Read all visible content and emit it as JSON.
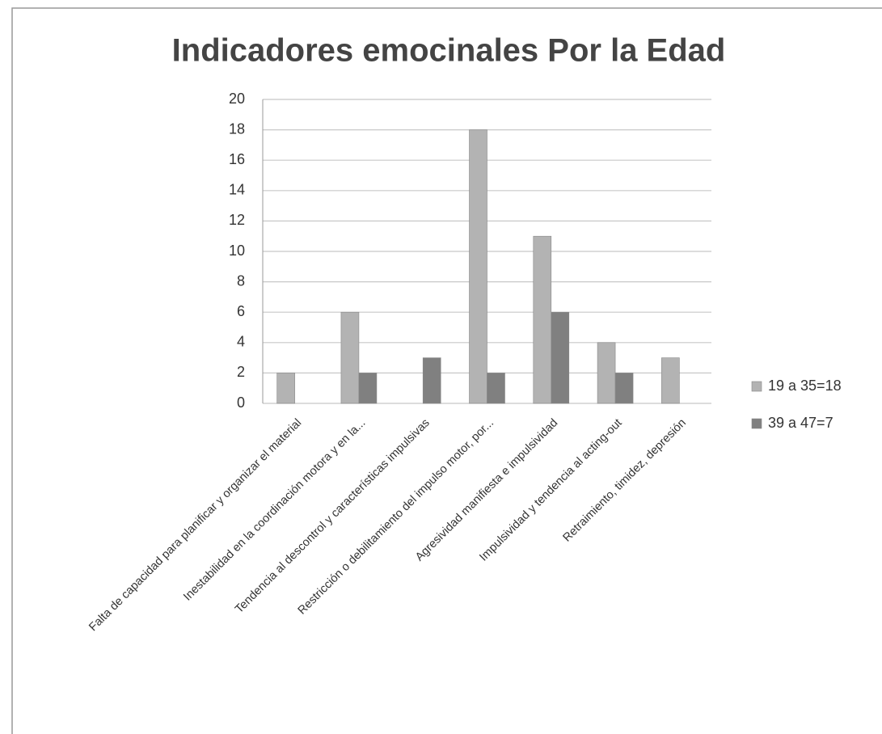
{
  "chart_data": {
    "type": "bar",
    "title": "Indicadores emocinales Por la Edad",
    "categories": [
      "Falta de capacidad para planificar y organizar el material",
      "Inestabilidad en la coordinación motora y en la...",
      "Tendencia al descontrol y características impulsivas",
      "Restricción o debilitamiento del impulso motor, por...",
      "Agresividad manifiesta e impulsividad",
      "Impulsividad y tendencia al acting-out",
      "Retraimiento, timidez, depresión"
    ],
    "series": [
      {
        "name": "19 a 35=18",
        "color": "#b3b3b3",
        "values": [
          2,
          6,
          0,
          18,
          11,
          4,
          3
        ]
      },
      {
        "name": "39 a 47=7",
        "color": "#808080",
        "values": [
          0,
          2,
          3,
          2,
          6,
          2,
          0
        ]
      }
    ],
    "ylim": [
      0,
      20
    ],
    "yticks": [
      0,
      2,
      4,
      6,
      8,
      10,
      12,
      14,
      16,
      18,
      20
    ],
    "grid": true,
    "legend": "right"
  }
}
